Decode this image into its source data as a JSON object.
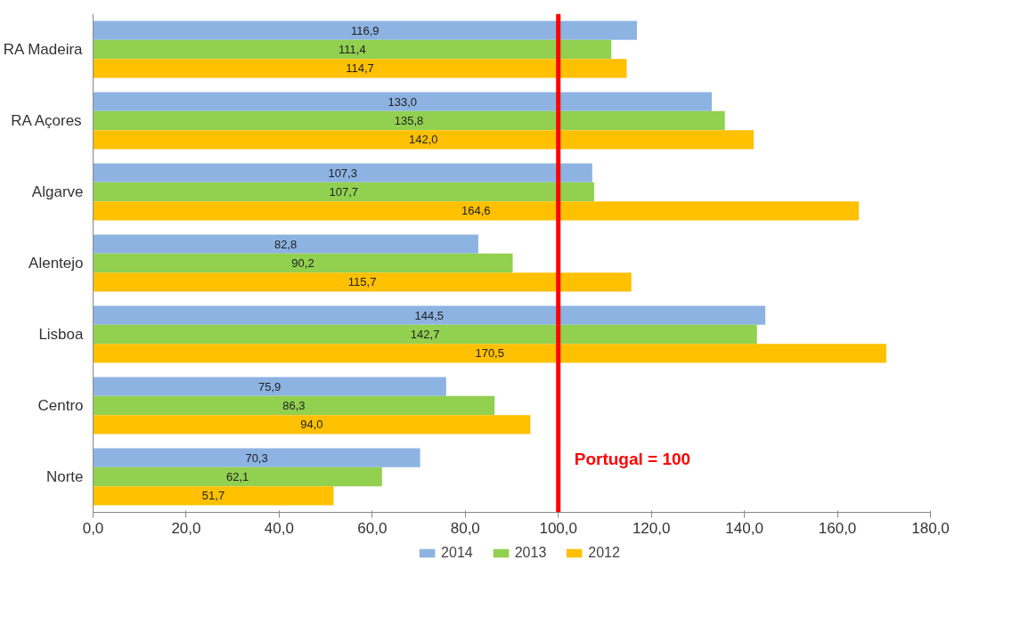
{
  "chart_data": {
    "type": "bar",
    "orientation": "horizontal",
    "categories": [
      "RA Madeira",
      "RA Açores",
      "Algarve",
      "Alentejo",
      "Lisboa",
      "Centro",
      "Norte"
    ],
    "series": [
      {
        "name": "2014",
        "color": "#8db3e2",
        "values": [
          116.9,
          133.0,
          107.3,
          82.8,
          144.5,
          75.9,
          70.3
        ],
        "value_labels": [
          "116,9",
          "133,0",
          "107,3",
          "82,8",
          "144,5",
          "75,9",
          "70,3"
        ]
      },
      {
        "name": "2013",
        "color": "#92d050",
        "values": [
          111.4,
          135.8,
          107.7,
          90.2,
          142.7,
          86.3,
          62.1
        ],
        "value_labels": [
          "111,4",
          "135,8",
          "107,7",
          "90,2",
          "142,7",
          "86,3",
          "62,1"
        ]
      },
      {
        "name": "2012",
        "color": "#ffc000",
        "values": [
          114.7,
          142.0,
          164.6,
          115.7,
          170.5,
          94.0,
          51.7
        ],
        "value_labels": [
          "114,7",
          "142,0",
          "164,6",
          "115,7",
          "170,5",
          "94,0",
          "51,7"
        ]
      }
    ],
    "xlim": [
      0,
      180
    ],
    "xticks": [
      {
        "value": 0,
        "label": "0,0"
      },
      {
        "value": 20,
        "label": "20,0"
      },
      {
        "value": 40,
        "label": "40,0"
      },
      {
        "value": 60,
        "label": "60,0"
      },
      {
        "value": 80,
        "label": "80,0"
      },
      {
        "value": 100,
        "label": "100,0"
      },
      {
        "value": 120,
        "label": "120,0"
      },
      {
        "value": 140,
        "label": "140,0"
      },
      {
        "value": 160,
        "label": "160,0"
      },
      {
        "value": 180,
        "label": "180,0"
      }
    ],
    "ref_lines": [
      {
        "axis": "x",
        "value": 100,
        "label": "Portugal = 100",
        "color": "#ff0000"
      }
    ],
    "grid": false,
    "legend": "bottom"
  }
}
